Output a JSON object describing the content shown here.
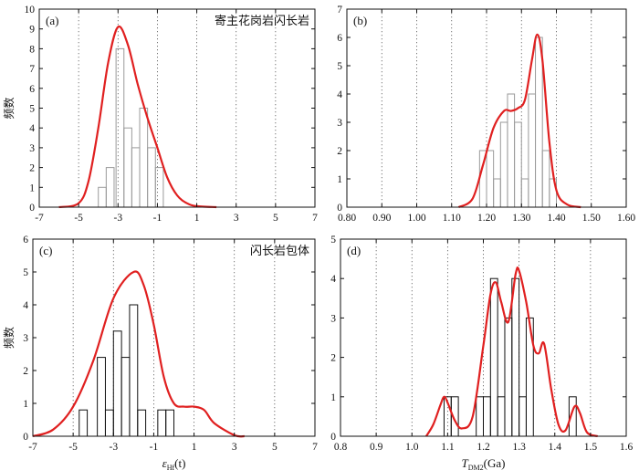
{
  "chart_data": [
    {
      "id": "a",
      "type": "bar",
      "panel_label": "(a)",
      "annotation": "寄主花岗岩闪长岩",
      "ylabel": "频数",
      "xlim": [
        -7,
        7
      ],
      "ylim": [
        0,
        10
      ],
      "xticks": [
        "-7",
        "-5",
        "-3",
        "-1",
        "1",
        "3",
        "5",
        "7"
      ],
      "yticks": [
        "0",
        "1",
        "2",
        "3",
        "4",
        "5",
        "6",
        "7",
        "8",
        "9",
        "10"
      ],
      "grid_x": [
        -5,
        -3,
        -1,
        1,
        3,
        5
      ],
      "bar_color": "#9a9a9a",
      "bar_width": 0.4,
      "bars": [
        {
          "x": -3.8,
          "value": 1
        },
        {
          "x": -3.4,
          "value": 2
        },
        {
          "x": -2.9,
          "value": 8
        },
        {
          "x": -2.5,
          "value": 4
        },
        {
          "x": -2.1,
          "value": 3
        },
        {
          "x": -1.7,
          "value": 5
        },
        {
          "x": -1.3,
          "value": 3
        },
        {
          "x": -0.9,
          "value": 2
        }
      ],
      "curve": {
        "x": [
          -6,
          -5,
          -4.5,
          -4,
          -3.5,
          -3,
          -2.5,
          -2,
          -1.5,
          -1,
          -0.5,
          0,
          0.5,
          1,
          2
        ],
        "y": [
          0,
          0.2,
          1.3,
          4.0,
          7.3,
          9.1,
          8.2,
          6.2,
          4.5,
          3.0,
          1.5,
          0.6,
          0.2,
          0.05,
          0
        ]
      }
    },
    {
      "id": "b",
      "type": "bar",
      "panel_label": "(b)",
      "xlim": [
        0.8,
        1.6
      ],
      "ylim": [
        0,
        7
      ],
      "xticks": [
        "0.80",
        "0.90",
        "1.00",
        "1.10",
        "1.20",
        "1.30",
        "1.40",
        "1.50",
        "1.60"
      ],
      "yticks": [
        "0",
        "1",
        "2",
        "3",
        "4",
        "5",
        "6",
        "7"
      ],
      "grid_x": [
        0.9,
        1.0,
        1.1,
        1.2,
        1.3,
        1.4,
        1.5
      ],
      "bar_color": "#9a9a9a",
      "bar_width": 0.02,
      "bars": [
        {
          "x": 1.19,
          "value": 2
        },
        {
          "x": 1.21,
          "value": 2
        },
        {
          "x": 1.23,
          "value": 1
        },
        {
          "x": 1.25,
          "value": 3
        },
        {
          "x": 1.27,
          "value": 4
        },
        {
          "x": 1.29,
          "value": 3
        },
        {
          "x": 1.31,
          "value": 1
        },
        {
          "x": 1.33,
          "value": 4
        },
        {
          "x": 1.35,
          "value": 6
        },
        {
          "x": 1.37,
          "value": 2
        },
        {
          "x": 1.39,
          "value": 1
        }
      ],
      "curve": {
        "x": [
          1.12,
          1.16,
          1.19,
          1.22,
          1.25,
          1.27,
          1.29,
          1.31,
          1.33,
          1.345,
          1.36,
          1.38,
          1.4,
          1.43,
          1.47
        ],
        "y": [
          0,
          0.3,
          1.5,
          2.8,
          3.4,
          3.4,
          3.5,
          3.8,
          5.2,
          6.1,
          5.2,
          2.3,
          0.6,
          0.1,
          0
        ]
      }
    },
    {
      "id": "c",
      "type": "bar",
      "panel_label": "(c)",
      "annotation": "闪长岩包体",
      "ylabel": "频数",
      "xlabel": "εHf(t)",
      "xlabel_main": "ε",
      "xlabel_sub": "Hf",
      "xlabel_tail": "(t)",
      "xlim": [
        -7,
        7
      ],
      "ylim": [
        0,
        6
      ],
      "xticks": [
        "-7",
        "-5",
        "-3",
        "-1",
        "1",
        "3",
        "5",
        "7"
      ],
      "yticks": [
        "0",
        "1",
        "2",
        "3",
        "4",
        "5",
        "6"
      ],
      "grid_x": [
        -5,
        -3,
        -1,
        1,
        3,
        5
      ],
      "bar_color": "#111111",
      "bar_width": 0.4,
      "bars": [
        {
          "x": -4.5,
          "value": 0.8
        },
        {
          "x": -3.6,
          "value": 2.4
        },
        {
          "x": -3.2,
          "value": 0.8
        },
        {
          "x": -2.8,
          "value": 3.2
        },
        {
          "x": -2.4,
          "value": 2.4
        },
        {
          "x": -2.0,
          "value": 4.0
        },
        {
          "x": -1.6,
          "value": 0.8
        },
        {
          "x": -0.6,
          "value": 0.8
        },
        {
          "x": -0.2,
          "value": 0.8
        }
      ],
      "curve": {
        "x": [
          -7,
          -6,
          -5,
          -4,
          -3,
          -2,
          -1.5,
          -1,
          -0.5,
          0,
          0.5,
          1,
          1.5,
          2,
          3,
          3.5
        ],
        "y": [
          0,
          0.2,
          0.9,
          2.3,
          4.2,
          5.0,
          4.6,
          3.4,
          1.8,
          1.0,
          0.9,
          0.9,
          0.8,
          0.4,
          0.03,
          0
        ]
      }
    },
    {
      "id": "d",
      "type": "bar",
      "panel_label": "(d)",
      "xlabel": "TDM2(Ga)",
      "xlabel_main": "T",
      "xlabel_sub": "DM2",
      "xlabel_tail": "(Ga)",
      "xlim": [
        0.8,
        1.6
      ],
      "ylim": [
        0,
        5
      ],
      "xticks": [
        "0.8",
        "0.9",
        "1.0",
        "1.1",
        "1.2",
        "1.3",
        "1.4",
        "1.5",
        "1.6"
      ],
      "yticks": [
        "0",
        "1",
        "2",
        "3",
        "4",
        "5"
      ],
      "grid_x": [
        0.9,
        1.0,
        1.1,
        1.2,
        1.3,
        1.4,
        1.5
      ],
      "bar_color": "#111111",
      "bar_width": 0.02,
      "bars": [
        {
          "x": 1.1,
          "value": 1
        },
        {
          "x": 1.12,
          "value": 1
        },
        {
          "x": 1.19,
          "value": 1
        },
        {
          "x": 1.21,
          "value": 1
        },
        {
          "x": 1.23,
          "value": 4
        },
        {
          "x": 1.25,
          "value": 1
        },
        {
          "x": 1.27,
          "value": 3
        },
        {
          "x": 1.29,
          "value": 4
        },
        {
          "x": 1.31,
          "value": 1
        },
        {
          "x": 1.33,
          "value": 3
        },
        {
          "x": 1.45,
          "value": 1
        }
      ],
      "curve": {
        "x": [
          1.04,
          1.06,
          1.08,
          1.09,
          1.1,
          1.12,
          1.14,
          1.17,
          1.2,
          1.22,
          1.235,
          1.25,
          1.27,
          1.29,
          1.3,
          1.32,
          1.34,
          1.355,
          1.37,
          1.39,
          1.41,
          1.43,
          1.455,
          1.47,
          1.49,
          1.52
        ],
        "y": [
          0,
          0.3,
          0.8,
          1.0,
          0.85,
          0.4,
          0.2,
          0.5,
          2.3,
          3.6,
          3.9,
          3.4,
          2.9,
          4.1,
          4.2,
          3.4,
          2.3,
          2.1,
          2.35,
          1.2,
          0.3,
          0.15,
          0.75,
          0.6,
          0.1,
          0
        ]
      }
    }
  ]
}
